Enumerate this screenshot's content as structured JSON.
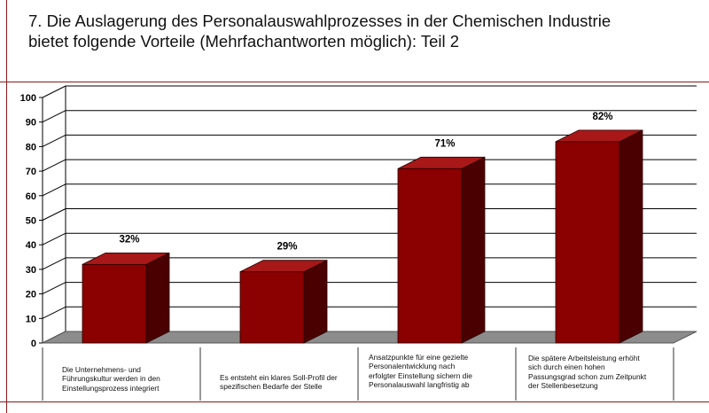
{
  "title": {
    "line1": "7. Die Auslagerung des Personalauswahlprozesses in der Chemischen Industrie",
    "line2": "bietet folgende Vorteile (Mehrfachantworten möglich): Teil 2"
  },
  "chart_data": {
    "type": "bar",
    "categories": [
      "Die Unternehmens- und Führungskultur werden in den Einstellungsprozess integriert",
      "Es entsteht ein klares Soll-Profil der spezifischen Bedarfe der Stelle",
      "Ansatzpunkte für eine gezielte Personalentwicklung nach erfolgter Einstellung sichern die Personalauswahl langfristig ab",
      "Die spätere Arbeitsleistung erhöht sich durch einen hohen Passungsgrad schon zum Zeitpunkt der Stellenbesetzung"
    ],
    "category_lines": [
      [
        "Die Unternehmens- und",
        "Führungskultur werden in den",
        "Einstellungsprozess integriert"
      ],
      [
        "Es entsteht ein klares Soll-Profil der",
        "spezifischen Bedarfe der Stelle"
      ],
      [
        "Ansatzpunkte für eine gezielte",
        "Personalentwicklung nach",
        "erfolgter Einstellung sichern die",
        "Personalauswahl langfristig ab"
      ],
      [
        "Die spätere Arbeitsleistung erhöht",
        "sich durch einen hohen",
        "Passungsgrad schon zum Zeitpunkt",
        "der Stellenbesetzung"
      ]
    ],
    "values": [
      32,
      29,
      71,
      82
    ],
    "data_labels": [
      "32%",
      "29%",
      "71%",
      "82%"
    ],
    "y_ticks": [
      "0",
      "10",
      "20",
      "30",
      "40",
      "50",
      "60",
      "70",
      "80",
      "90",
      "100"
    ],
    "ylim": [
      0,
      100
    ],
    "grid": true,
    "legend": "none",
    "bar_style": "3d",
    "colors": {
      "bar_front": "#8b0000",
      "bar_side": "#4a0000",
      "bar_top": "#a81818",
      "floor": "#8c8c8c",
      "frame": "#8b1a1a"
    }
  }
}
